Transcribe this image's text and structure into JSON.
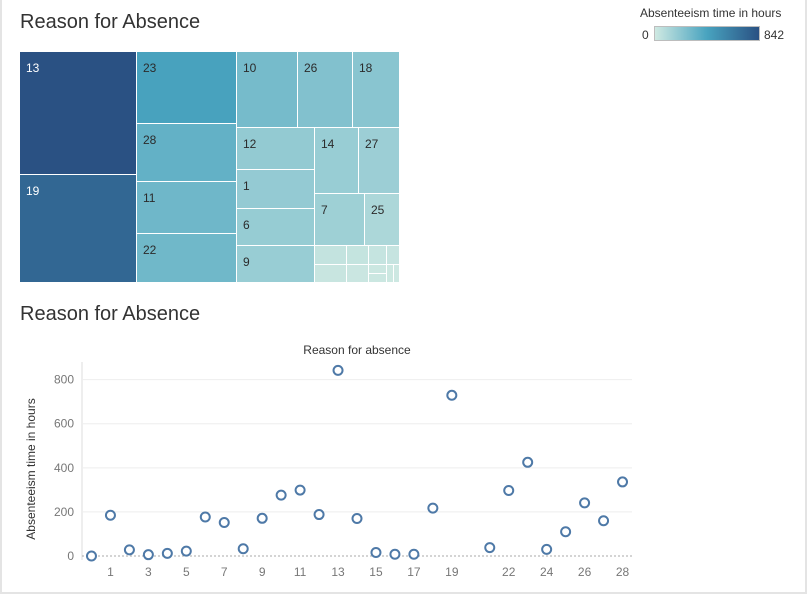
{
  "titles": {
    "treemap": "Reason for Absence",
    "scatter": "Reason for Absence"
  },
  "legend": {
    "title": "Absenteeism time in hours",
    "min": "0",
    "max": "842",
    "color_low": "#cfe9e2",
    "color_mid": "#48a3bf",
    "color_high": "#2a5183"
  },
  "chart_data": [
    {
      "type": "treemap",
      "value_field": "Absenteeism time in hours",
      "tiles": [
        {
          "label": "13",
          "value": 842
        },
        {
          "label": "19",
          "value": 729
        },
        {
          "label": "23",
          "value": 425
        },
        {
          "label": "28",
          "value": 336
        },
        {
          "label": "11",
          "value": 299
        },
        {
          "label": "22",
          "value": 297
        },
        {
          "label": "10",
          "value": 276
        },
        {
          "label": "26",
          "value": 241
        },
        {
          "label": "18",
          "value": 217
        },
        {
          "label": "12",
          "value": 188
        },
        {
          "label": "1",
          "value": 185
        },
        {
          "label": "6",
          "value": 177
        },
        {
          "label": "9",
          "value": 171
        },
        {
          "label": "14",
          "value": 170
        },
        {
          "label": "27",
          "value": 160
        },
        {
          "label": "7",
          "value": 152
        },
        {
          "label": "25",
          "value": 110
        },
        {
          "label": "",
          "value": 38
        },
        {
          "label": "",
          "value": 33
        },
        {
          "label": "",
          "value": 30
        },
        {
          "label": "",
          "value": 28
        },
        {
          "label": "",
          "value": 22
        },
        {
          "label": "",
          "value": 16
        },
        {
          "label": "",
          "value": 12
        },
        {
          "label": "",
          "value": 11
        },
        {
          "label": "",
          "value": 8
        },
        {
          "label": "",
          "value": 6
        }
      ]
    },
    {
      "type": "scatter",
      "title": "Reason for absence",
      "ylabel": "Absenteeism time in hours",
      "xlim": [
        -0.5,
        28.5
      ],
      "ylim": [
        0,
        880
      ],
      "x_ticks": [
        1,
        3,
        5,
        7,
        9,
        11,
        13,
        15,
        17,
        19,
        22,
        24,
        26,
        28
      ],
      "y_ticks": [
        0,
        200,
        400,
        600,
        800
      ],
      "marker_color": "#4e79a7",
      "points": [
        {
          "x": 0,
          "y": 0
        },
        {
          "x": 1,
          "y": 185
        },
        {
          "x": 2,
          "y": 28
        },
        {
          "x": 3,
          "y": 6
        },
        {
          "x": 4,
          "y": 12
        },
        {
          "x": 5,
          "y": 22
        },
        {
          "x": 6,
          "y": 177
        },
        {
          "x": 7,
          "y": 152
        },
        {
          "x": 8,
          "y": 33
        },
        {
          "x": 9,
          "y": 171
        },
        {
          "x": 10,
          "y": 276
        },
        {
          "x": 11,
          "y": 299
        },
        {
          "x": 12,
          "y": 188
        },
        {
          "x": 13,
          "y": 842
        },
        {
          "x": 14,
          "y": 170
        },
        {
          "x": 15,
          "y": 16
        },
        {
          "x": 16,
          "y": 8
        },
        {
          "x": 17,
          "y": 8
        },
        {
          "x": 18,
          "y": 217
        },
        {
          "x": 19,
          "y": 729
        },
        {
          "x": 21,
          "y": 38
        },
        {
          "x": 22,
          "y": 297
        },
        {
          "x": 23,
          "y": 425
        },
        {
          "x": 24,
          "y": 30
        },
        {
          "x": 25,
          "y": 110
        },
        {
          "x": 26,
          "y": 241
        },
        {
          "x": 27,
          "y": 160
        },
        {
          "x": 28,
          "y": 336
        }
      ]
    }
  ]
}
